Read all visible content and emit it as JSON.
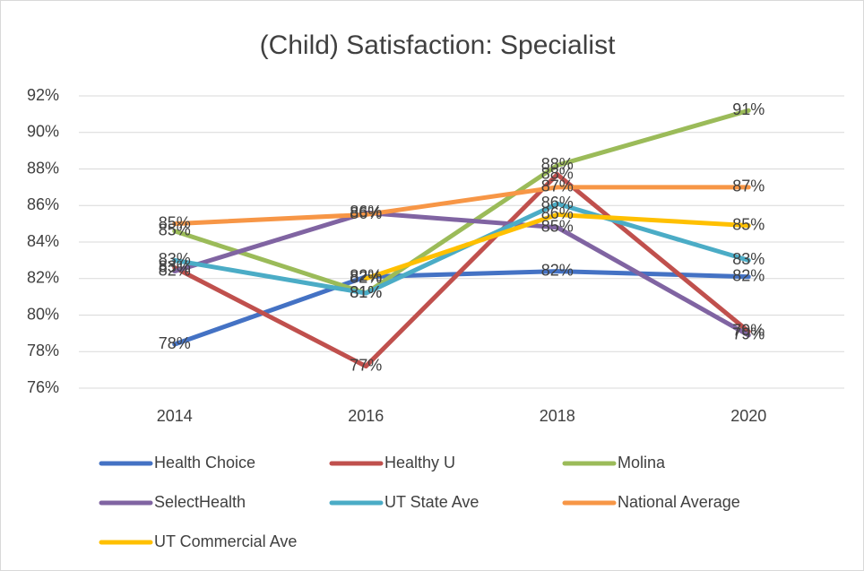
{
  "chart_data": {
    "type": "line",
    "title": "(Child) Satisfaction: Specialist",
    "categories": [
      "2014",
      "2016",
      "2018",
      "2020"
    ],
    "ylim": [
      76,
      92
    ],
    "yticks": [
      {
        "value": 76,
        "label": "76%"
      },
      {
        "value": 78,
        "label": "78%"
      },
      {
        "value": 80,
        "label": "80%"
      },
      {
        "value": 82,
        "label": "82%"
      },
      {
        "value": 84,
        "label": "84%"
      },
      {
        "value": 86,
        "label": "86%"
      },
      {
        "value": 88,
        "label": "88%"
      },
      {
        "value": 90,
        "label": "90%"
      },
      {
        "value": 92,
        "label": "92%"
      }
    ],
    "grid": true,
    "legend": "bottom",
    "series": [
      {
        "name": "Health Choice",
        "color": "#4472c4",
        "values": [
          78.4,
          82.1,
          82.4,
          82.1
        ],
        "value_labels": [
          "78%",
          "82%",
          "82%",
          "82%"
        ]
      },
      {
        "name": "Healthy U",
        "color": "#c0504d",
        "values": [
          82.6,
          77.2,
          87.7,
          79.1
        ],
        "value_labels": [
          "83%",
          "77%",
          "88%",
          "79%"
        ]
      },
      {
        "name": "Molina",
        "color": "#9bbb59",
        "values": [
          84.6,
          81.2,
          88.2,
          91.2
        ],
        "value_labels": [
          "85%",
          "81%",
          "88%",
          "91%"
        ]
      },
      {
        "name": "SelectHealth",
        "color": "#8064a2",
        "values": [
          82.4,
          85.6,
          84.8,
          78.9
        ],
        "value_labels": [
          "82%",
          "86%",
          "85%",
          "79%"
        ]
      },
      {
        "name": "UT State Ave",
        "color": "#4bacc6",
        "values": [
          83.0,
          81.2,
          86.1,
          83.0
        ],
        "value_labels": [
          "83%",
          "81%",
          "86%",
          "83%"
        ]
      },
      {
        "name": "National Average",
        "color": "#f79646",
        "values": [
          85.0,
          85.5,
          87.0,
          87.0
        ],
        "value_labels": [
          "85%",
          "86%",
          "87%",
          "87%"
        ]
      },
      {
        "name": "UT Commercial Ave",
        "color": "#ffc000",
        "values": [
          null,
          82.0,
          85.5,
          84.9
        ],
        "value_labels": [
          null,
          "82%",
          "86%",
          "85%"
        ]
      }
    ]
  }
}
